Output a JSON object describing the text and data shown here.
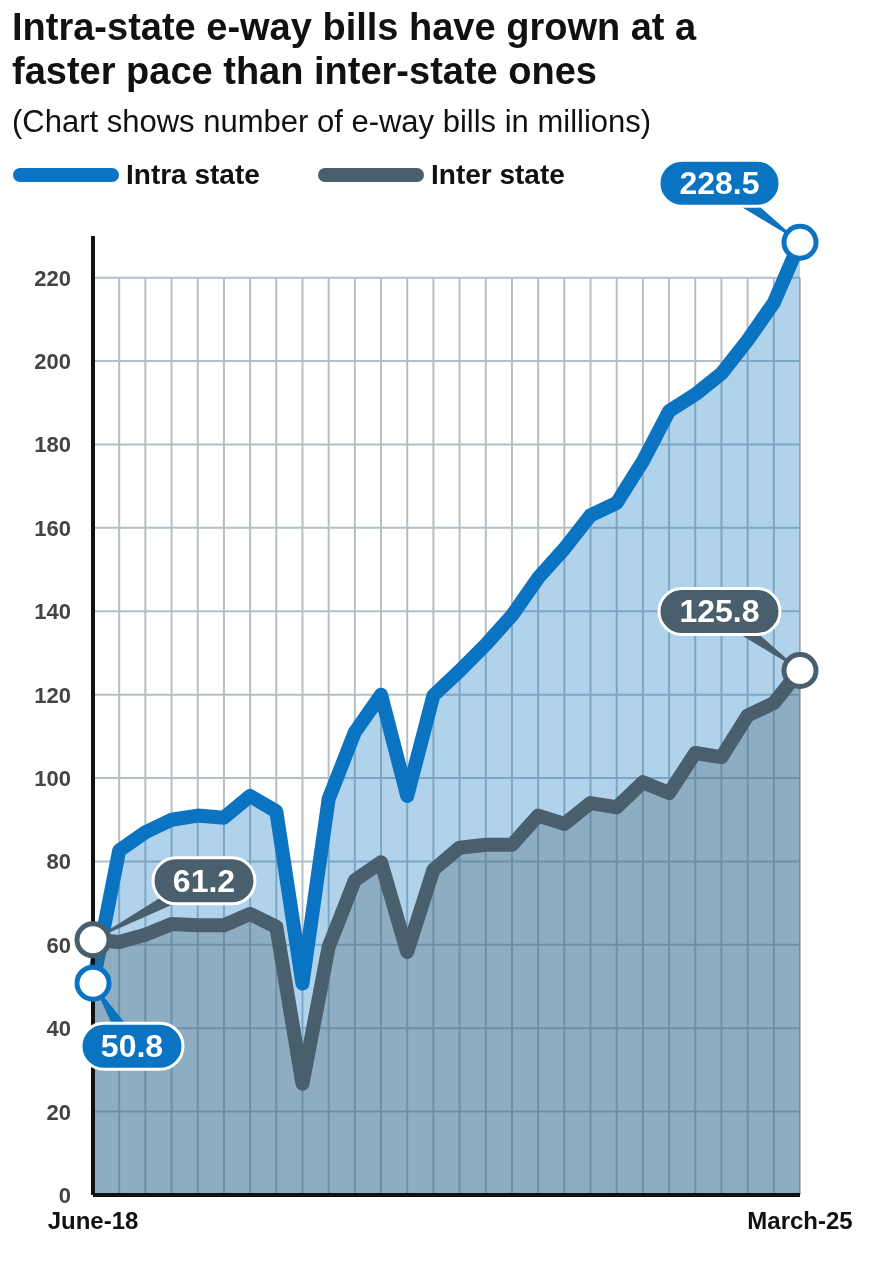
{
  "chart_data": {
    "type": "area",
    "title": "Intra-state e-way bills have grown at a faster pace than inter-state ones",
    "subtitle": "(Chart shows number of e-way bills in millions)",
    "categories": [
      "June-18",
      null,
      null,
      null,
      null,
      null,
      null,
      null,
      null,
      null,
      null,
      null,
      null,
      null,
      null,
      null,
      null,
      null,
      null,
      null,
      null,
      null,
      null,
      null,
      null,
      null,
      null,
      "March-25"
    ],
    "series": [
      {
        "name": "Intra state",
        "color": "#0a73c2",
        "values": [
          50.8,
          82.6,
          87,
          90,
          91,
          90.5,
          95.7,
          92,
          50.7,
          95,
          111,
          120,
          95.7,
          119.8,
          125.7,
          132,
          139,
          148,
          155,
          163,
          166,
          176,
          188,
          192,
          197,
          205,
          214,
          228.5
        ]
      },
      {
        "name": "Inter state",
        "color": "#4a5f6d",
        "values": [
          61.2,
          60.7,
          62.4,
          65,
          64.7,
          64.7,
          67.4,
          64.3,
          26.7,
          59.5,
          75.5,
          79.8,
          58.3,
          78,
          83.3,
          84,
          84,
          91,
          89,
          94,
          93,
          99,
          96.4,
          106,
          105,
          115,
          118,
          125.8
        ]
      }
    ],
    "ylim": [
      0,
      230
    ],
    "yticks": [
      0,
      20,
      40,
      60,
      80,
      100,
      120,
      140,
      160,
      180,
      200,
      220
    ],
    "grid": true,
    "legend": "top left",
    "marker": "none",
    "line_style": "solid",
    "annotations": [
      {
        "text": "61.2",
        "x": "June-18",
        "y": 61.2
      },
      {
        "text": "50.8",
        "x": "June-18",
        "y": 50.8
      },
      {
        "text": "228.5",
        "x": "March-25",
        "y": 228.5
      },
      {
        "text": "125.8",
        "x": "March-25",
        "y": 125.8
      }
    ]
  }
}
